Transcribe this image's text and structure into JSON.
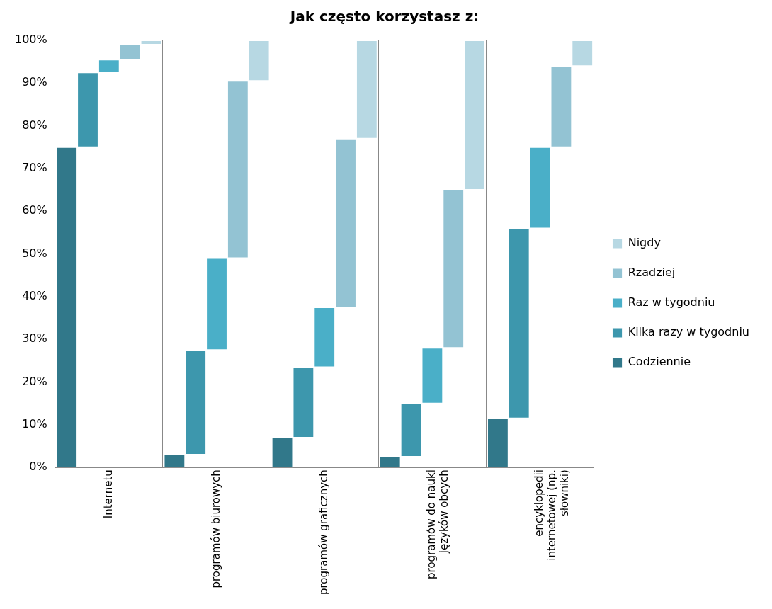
{
  "chart_data": {
    "type": "bar",
    "title": "Jak często korzystasz z:",
    "stacked": true,
    "categories": [
      "Internetu",
      "programów biurowych",
      "programów graficznych",
      "programów do nauki języków obcych",
      "encyklopedii internetowej (np. słowniki)"
    ],
    "series": [
      {
        "name": "Codziennie",
        "color": "#31788a",
        "values": [
          75,
          3,
          7,
          2.5,
          11.5
        ]
      },
      {
        "name": "Kilka razy w tygodniu",
        "color": "#3d97ad",
        "values": [
          17.5,
          24.5,
          16.5,
          12.5,
          44.5
        ]
      },
      {
        "name": "Raz w tygodniu",
        "color": "#4aafc8",
        "values": [
          3,
          21.5,
          14,
          13,
          19
        ]
      },
      {
        "name": "Rzadziej",
        "color": "#93c3d3",
        "values": [
          3.5,
          41.5,
          39.5,
          37,
          19
        ]
      },
      {
        "name": "Nigdy",
        "color": "#b7d8e3",
        "values": [
          1,
          9.5,
          23,
          35,
          6
        ]
      }
    ],
    "ylim": [
      0,
      100
    ],
    "yticks": [
      {
        "value": 0,
        "label": "0%"
      },
      {
        "value": 10,
        "label": "10%"
      },
      {
        "value": 20,
        "label": "20%"
      },
      {
        "value": 30,
        "label": "30%"
      },
      {
        "value": 40,
        "label": "40%"
      },
      {
        "value": 50,
        "label": "50%"
      },
      {
        "value": 60,
        "label": "60%"
      },
      {
        "value": 70,
        "label": "70%"
      },
      {
        "value": 80,
        "label": "80%"
      },
      {
        "value": 90,
        "label": "90%"
      },
      {
        "value": 100,
        "label": "100%"
      }
    ],
    "grid": "x",
    "legend": "right"
  }
}
